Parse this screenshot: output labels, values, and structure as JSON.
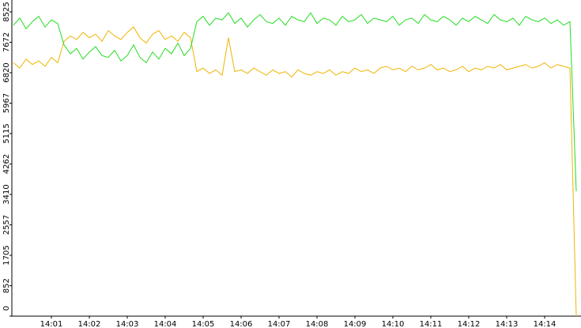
{
  "chart_data": {
    "type": "line",
    "categories": [
      null,
      null,
      null,
      null,
      null,
      null,
      "14:01",
      null,
      null,
      null,
      null,
      null,
      "14:02",
      null,
      null,
      null,
      null,
      null,
      "14:03",
      null,
      null,
      null,
      null,
      null,
      "14:04",
      null,
      null,
      null,
      null,
      null,
      "14:05",
      null,
      null,
      null,
      null,
      null,
      "14:06",
      null,
      null,
      null,
      null,
      null,
      "14:07",
      null,
      null,
      null,
      null,
      null,
      "14:08",
      null,
      null,
      null,
      null,
      null,
      "14:09",
      null,
      null,
      null,
      null,
      null,
      "14:10",
      null,
      null,
      null,
      null,
      null,
      "14:11",
      null,
      null,
      null,
      null,
      null,
      "14:12",
      null,
      null,
      null,
      null,
      null,
      "14:13",
      null,
      null,
      null,
      null,
      null,
      "14:14",
      null,
      null,
      null,
      null,
      null
    ],
    "series": [
      {
        "color": "#22dd22",
        "values": [
          8150,
          8350,
          8050,
          8250,
          8400,
          8100,
          8300,
          8200,
          7600,
          7350,
          7500,
          7200,
          7400,
          7550,
          7300,
          7250,
          7450,
          7150,
          7300,
          7600,
          7250,
          7100,
          7400,
          7200,
          7500,
          7350,
          7650,
          7300,
          7500,
          8250,
          8400,
          8150,
          8350,
          8300,
          8500,
          8200,
          8350,
          8100,
          8300,
          8450,
          8250,
          8200,
          8350,
          8150,
          8400,
          8300,
          8250,
          8500,
          8200,
          8350,
          8300,
          8150,
          8400,
          8250,
          8300,
          8450,
          8200,
          8350,
          8300,
          8250,
          8400,
          8150,
          8300,
          8350,
          8200,
          8450,
          8300,
          8250,
          8400,
          8300,
          8150,
          8350,
          8250,
          8400,
          8300,
          8200,
          8450,
          8300,
          8250,
          8350,
          8150,
          8400,
          8300,
          8250,
          8350,
          8200,
          8300,
          8150,
          8250,
          3500
        ]
      },
      {
        "color": "#f0b400",
        "values": [
          7100,
          6950,
          7200,
          7050,
          7150,
          7000,
          7250,
          7100,
          7700,
          7850,
          7750,
          7950,
          7800,
          7900,
          7700,
          8000,
          7850,
          7750,
          7950,
          8100,
          7800,
          7650,
          7900,
          8000,
          7750,
          7850,
          7700,
          7950,
          7800,
          6850,
          6950,
          6800,
          6900,
          6750,
          7800,
          6850,
          6900,
          6800,
          6950,
          6850,
          6750,
          6900,
          6800,
          6850,
          6700,
          6900,
          6800,
          6750,
          6850,
          6800,
          6900,
          6750,
          6850,
          6800,
          6950,
          6850,
          6900,
          6800,
          6950,
          7000,
          6900,
          6950,
          6850,
          7000,
          6900,
          6950,
          7050,
          6900,
          6950,
          6850,
          6900,
          7000,
          6850,
          6950,
          6900,
          7000,
          6950,
          7050,
          6900,
          6950,
          7000,
          7050,
          6950,
          7000,
          7100,
          6950,
          7050,
          7000,
          6950,
          0
        ]
      }
    ],
    "ylim": [
      0,
      8525
    ],
    "yticks": [
      0,
      852,
      1705,
      2557,
      3410,
      4262,
      5115,
      5967,
      6820,
      7672,
      8525
    ]
  }
}
